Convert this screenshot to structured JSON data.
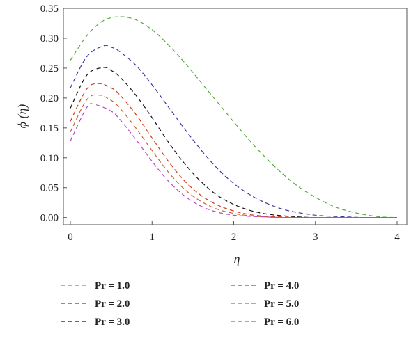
{
  "chart_data": {
    "type": "line",
    "title": "",
    "xlabel": "η",
    "ylabel": "ϕ (η)",
    "xlim": [
      0,
      4
    ],
    "ylim": [
      -0.012,
      0.35
    ],
    "xticks": [
      0,
      1,
      2,
      3,
      4
    ],
    "yticks": [
      0.0,
      0.05,
      0.1,
      0.15,
      0.2,
      0.25,
      0.3,
      0.35
    ],
    "x_tick_labels": [
      "0",
      "1",
      "2",
      "3",
      "4"
    ],
    "y_tick_labels": [
      "0.00",
      "0.05",
      "0.10",
      "0.15",
      "0.20",
      "0.25",
      "0.30",
      "0.35"
    ],
    "grid": false,
    "legend_position": "bottom",
    "line_style": "dashed",
    "series": [
      {
        "name": "Pr = 1.0",
        "color": "#5aa83a",
        "x": [
          0,
          0.2,
          0.4,
          0.6,
          0.8,
          1.0,
          1.2,
          1.4,
          1.6,
          1.8,
          2.0,
          2.2,
          2.4,
          2.6,
          2.8,
          3.0,
          3.2,
          3.4,
          3.6,
          3.8,
          4.0
        ],
        "y": [
          0.263,
          0.304,
          0.329,
          0.336,
          0.331,
          0.314,
          0.289,
          0.259,
          0.226,
          0.193,
          0.16,
          0.128,
          0.099,
          0.073,
          0.051,
          0.034,
          0.02,
          0.011,
          0.005,
          0.001,
          0.0
        ]
      },
      {
        "name": "Pr = 2.0",
        "color": "#3a3aa0",
        "x": [
          0,
          0.2,
          0.4,
          0.5,
          0.6,
          0.8,
          1.0,
          1.2,
          1.4,
          1.6,
          1.8,
          2.0,
          2.2,
          2.4,
          2.6,
          2.8,
          3.0,
          3.2,
          3.4,
          3.6,
          3.8,
          4.0
        ],
        "y": [
          0.217,
          0.269,
          0.287,
          0.285,
          0.278,
          0.255,
          0.222,
          0.185,
          0.148,
          0.113,
          0.082,
          0.057,
          0.038,
          0.024,
          0.014,
          0.008,
          0.004,
          0.002,
          0.001,
          0.0,
          0.0,
          0.0
        ]
      },
      {
        "name": "Pr = 3.0",
        "color": "#111111",
        "x": [
          0,
          0.2,
          0.4,
          0.5,
          0.6,
          0.8,
          1.0,
          1.2,
          1.4,
          1.6,
          1.8,
          2.0,
          2.2,
          2.4,
          2.6,
          2.8,
          3.0,
          3.2,
          3.4,
          3.6,
          3.8,
          4.0
        ],
        "y": [
          0.183,
          0.238,
          0.251,
          0.246,
          0.236,
          0.205,
          0.167,
          0.126,
          0.09,
          0.06,
          0.037,
          0.022,
          0.012,
          0.006,
          0.003,
          0.001,
          0.0,
          0.0,
          0.0,
          0.0,
          0.0,
          0.0
        ]
      },
      {
        "name": "Pr = 4.0",
        "color": "#cc3a1a",
        "x": [
          0,
          0.2,
          0.35,
          0.5,
          0.6,
          0.8,
          1.0,
          1.2,
          1.4,
          1.6,
          1.8,
          2.0,
          2.2,
          2.4,
          2.6,
          2.8,
          3.0,
          3.2,
          3.4,
          3.6,
          3.8,
          4.0
        ],
        "y": [
          0.161,
          0.215,
          0.224,
          0.217,
          0.206,
          0.173,
          0.133,
          0.094,
          0.061,
          0.037,
          0.021,
          0.011,
          0.005,
          0.002,
          0.001,
          0.0,
          0.0,
          0.0,
          0.0,
          0.0,
          0.0,
          0.0
        ]
      },
      {
        "name": "Pr = 5.0",
        "color": "#c8602a",
        "x": [
          0,
          0.2,
          0.35,
          0.5,
          0.6,
          0.8,
          1.0,
          1.2,
          1.4,
          1.6,
          1.8,
          2.0,
          2.2,
          2.4,
          2.6,
          2.8,
          3.0,
          3.2,
          3.4,
          3.6,
          3.8,
          4.0
        ],
        "y": [
          0.143,
          0.197,
          0.205,
          0.196,
          0.184,
          0.15,
          0.112,
          0.076,
          0.047,
          0.027,
          0.014,
          0.007,
          0.003,
          0.001,
          0.0,
          0.0,
          0.0,
          0.0,
          0.0,
          0.0,
          0.0,
          0.0
        ]
      },
      {
        "name": "Pr = 6.0",
        "color": "#c040c0",
        "x": [
          0,
          0.2,
          0.3,
          0.5,
          0.6,
          0.8,
          1.0,
          1.2,
          1.4,
          1.6,
          1.8,
          2.0,
          2.2,
          2.4,
          2.6,
          2.8,
          3.0,
          3.2,
          3.4,
          3.6,
          3.8,
          4.0
        ],
        "y": [
          0.128,
          0.184,
          0.189,
          0.178,
          0.165,
          0.131,
          0.094,
          0.061,
          0.036,
          0.019,
          0.009,
          0.004,
          0.002,
          0.001,
          0.0,
          0.0,
          0.0,
          0.0,
          0.0,
          0.0,
          0.0,
          0.0
        ]
      }
    ]
  }
}
